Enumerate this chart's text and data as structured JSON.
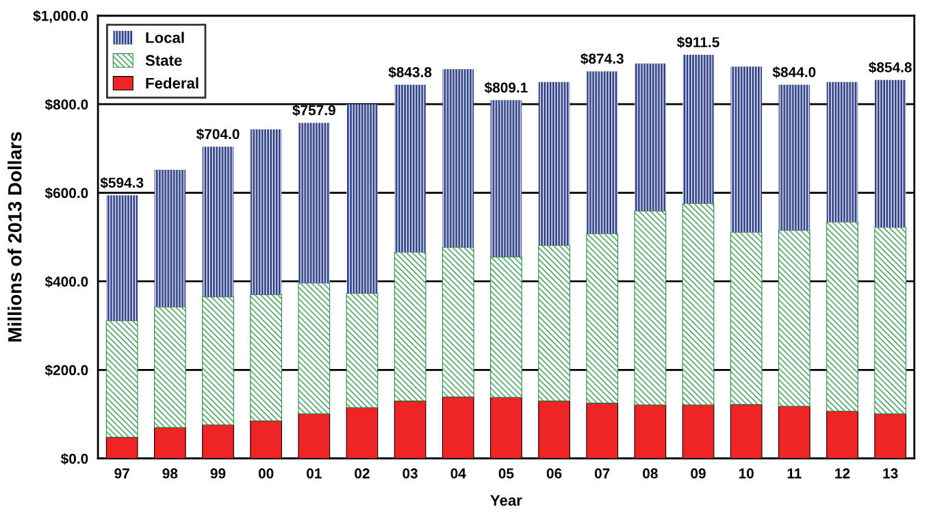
{
  "chart_data": {
    "type": "bar",
    "stacked": true,
    "xlabel": "Year",
    "ylabel": "Millions of 2013 Dollars",
    "categories": [
      "97",
      "98",
      "99",
      "00",
      "01",
      "02",
      "03",
      "04",
      "05",
      "06",
      "07",
      "08",
      "09",
      "10",
      "11",
      "12",
      "13"
    ],
    "series": [
      {
        "name": "Federal",
        "color": "#ee2427",
        "values": [
          48,
          70,
          76,
          85,
          101,
          115,
          130,
          139,
          138,
          130,
          125,
          121,
          121,
          122,
          118,
          107,
          101
        ]
      },
      {
        "name": "State",
        "color": "#2e8b46",
        "values": [
          263,
          272,
          289,
          285,
          295,
          258,
          336,
          338,
          317,
          351,
          383,
          438,
          455,
          389,
          397,
          427,
          421
        ]
      },
      {
        "name": "Local",
        "color": "#2b3d85",
        "values": [
          283.3,
          310,
          339,
          373,
          361.9,
          427,
          377.8,
          402,
          354.1,
          369,
          366.3,
          333,
          335.5,
          374,
          329,
          316,
          332.8
        ]
      }
    ],
    "totals": [
      "$594.3",
      null,
      "$704.0",
      null,
      "$757.9",
      null,
      "$843.8",
      null,
      "$809.1",
      null,
      "$874.3",
      null,
      "$911.5",
      null,
      "$844.0",
      null,
      "$854.8"
    ],
    "ylim": [
      0,
      1000
    ],
    "yticks": [
      {
        "value": 0,
        "label": "$0.0"
      },
      {
        "value": 200,
        "label": "$200.0"
      },
      {
        "value": 400,
        "label": "$400.0"
      },
      {
        "value": 600,
        "label": "$600.0"
      },
      {
        "value": 800,
        "label": "$800.0"
      },
      {
        "value": 1000,
        "label": "$1,000.0"
      }
    ],
    "grid": "y",
    "legend": "top left"
  }
}
